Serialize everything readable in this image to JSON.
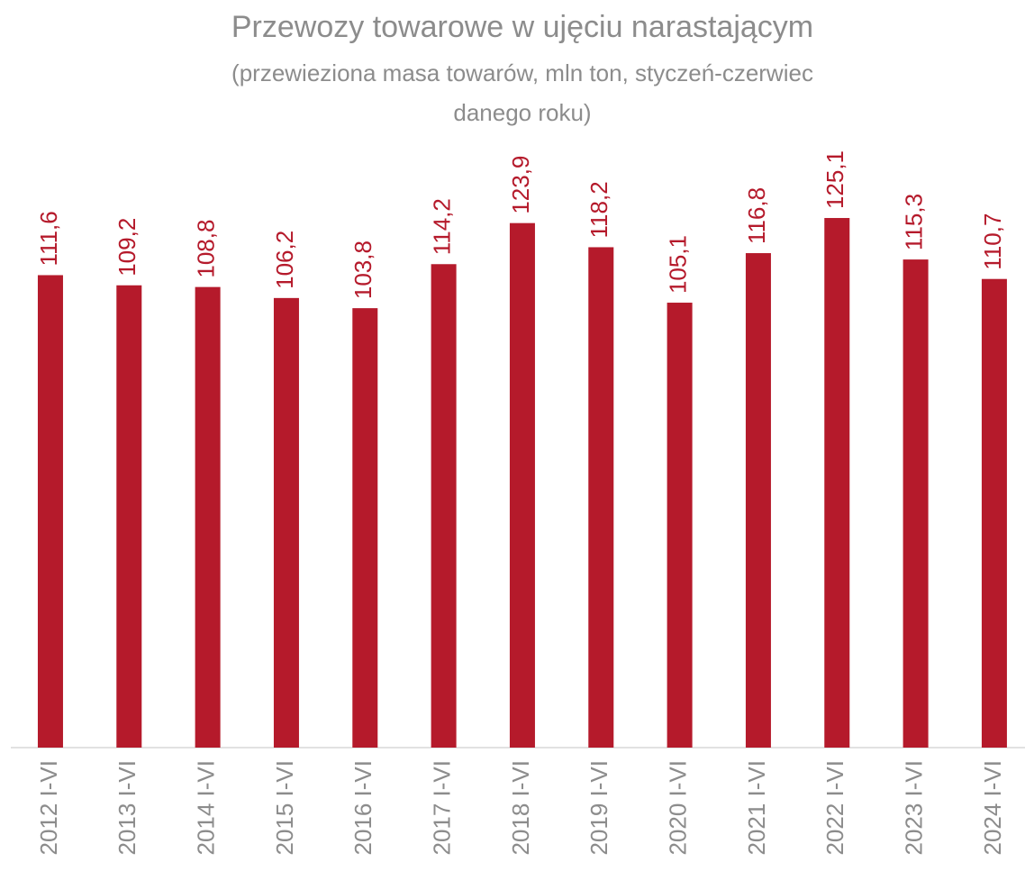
{
  "chart_data": {
    "type": "bar",
    "title": "Przewozy towarowe w ujęciu narastającym",
    "subtitle": [
      "(przewieziona masa towarów, mln ton, styczeń-czerwiec",
      "danego roku)"
    ],
    "categories": [
      "2012 I-VI",
      "2013 I-VI",
      "2014 I-VI",
      "2015 I-VI",
      "2016 I-VI",
      "2017 I-VI",
      "2018 I-VI",
      "2019 I-VI",
      "2020 I-VI",
      "2021 I-VI",
      "2022 I-VI",
      "2023 I-VI",
      "2024 I-VI"
    ],
    "values": [
      111.6,
      109.2,
      108.8,
      106.2,
      103.8,
      114.2,
      123.9,
      118.2,
      105.1,
      116.8,
      125.1,
      115.3,
      110.7
    ],
    "value_labels": [
      "111,6",
      "109,2",
      "108,8",
      "106,2",
      "103,8",
      "114,2",
      "123,9",
      "118,2",
      "105,1",
      "116,8",
      "125,1",
      "115,3",
      "110,7"
    ],
    "color": "#b51a2b",
    "ylim": [
      0,
      130
    ]
  }
}
